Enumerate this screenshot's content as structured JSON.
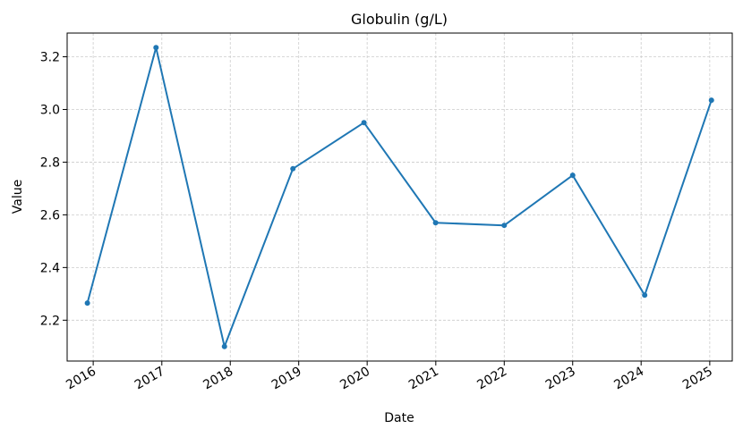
{
  "chart_data": {
    "type": "line",
    "title": "Globulin (g/L)",
    "xlabel": "Date",
    "ylabel": "Value",
    "x": [
      "2015-12-01",
      "2016-12-01",
      "2017-12-01",
      "2018-12-01",
      "2019-12-15",
      "2020-12-31",
      "2022-01-01",
      "2023-01-01",
      "2024-01-20",
      "2025-01-10"
    ],
    "x_ticks": [
      "2016",
      "2017",
      "2018",
      "2019",
      "2020",
      "2021",
      "2022",
      "2023",
      "2024",
      "2025"
    ],
    "x_tick_dates": [
      "2016-01-01",
      "2017-01-01",
      "2018-01-01",
      "2019-01-01",
      "2020-01-01",
      "2021-01-01",
      "2022-01-01",
      "2023-01-01",
      "2024-01-01",
      "2025-01-01"
    ],
    "y_ticks": [
      2.2,
      2.4,
      2.6,
      2.8,
      3.0,
      3.2
    ],
    "ylim": [
      2.045,
      3.29
    ],
    "xlim": [
      "2015-08-15",
      "2025-05-01"
    ],
    "series": [
      {
        "values": [
          2.265,
          3.235,
          2.1,
          2.775,
          2.95,
          2.57,
          2.56,
          2.75,
          2.295,
          3.035
        ]
      }
    ],
    "colors": {
      "line": "#1f77b4",
      "grid": "#cccccc",
      "axis": "#000000"
    },
    "grid": true
  }
}
